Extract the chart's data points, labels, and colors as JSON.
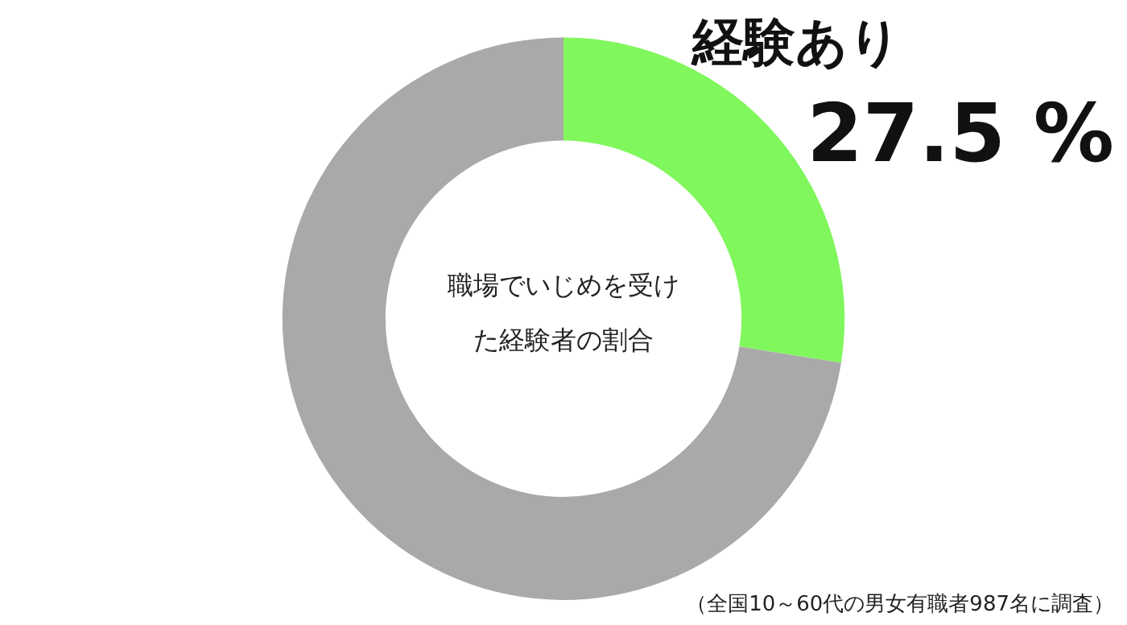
{
  "chart_data": {
    "type": "donut",
    "title": "職場でいじめを受けた経験者の割合",
    "categories": [
      "経験あり",
      null
    ],
    "values": [
      27.5,
      72.5
    ],
    "value_labels": [
      "27.5 %",
      null
    ],
    "colors": [
      "#80f75c",
      "#a9a9a9"
    ],
    "annotations": [
      "（全国10～60代の男女有職者987名に調査）"
    ]
  }
}
